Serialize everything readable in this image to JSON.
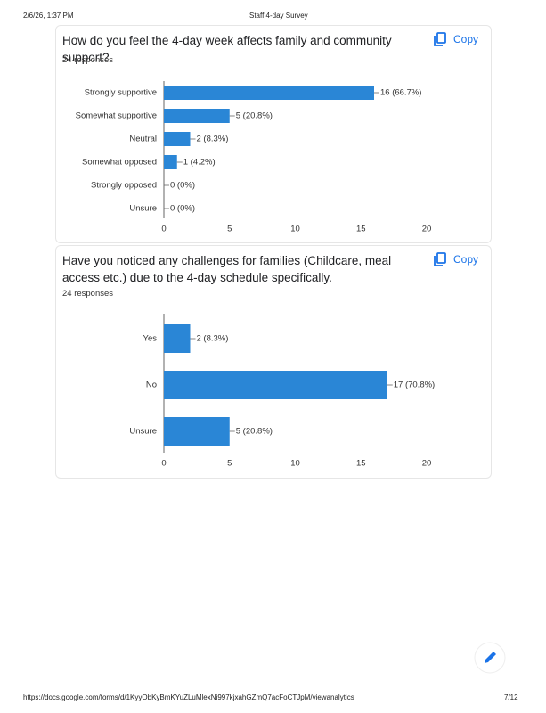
{
  "header": {
    "datetime": "2/6/26, 1:37 PM",
    "title": "Staff 4-day Survey"
  },
  "chart_data": [
    {
      "type": "bar",
      "orientation": "horizontal",
      "title": "How do you feel the 4-day week affects family and community support?",
      "subtitle": "24 responses",
      "copy_button": "Copy",
      "categories": [
        "Strongly supportive",
        "Somewhat supportive",
        "Neutral",
        "Somewhat opposed",
        "Strongly opposed",
        "Unsure"
      ],
      "values": [
        16,
        5,
        2,
        1,
        0,
        0
      ],
      "value_labels": [
        "16 (66.7%)",
        "5 (20.8%)",
        "2 (8.3%)",
        "1 (4.2%)",
        "0 (0%)",
        "0 (0%)"
      ],
      "color": "#2a86d6",
      "xlim": [
        0,
        20
      ],
      "xticks": [
        0,
        5,
        10,
        15,
        20
      ]
    },
    {
      "type": "bar",
      "orientation": "horizontal",
      "title": "Have you noticed any challenges for families (Childcare, meal access etc.) due to the 4-day schedule specifically.",
      "subtitle": "24 responses",
      "copy_button": "Copy",
      "categories": [
        "Yes",
        "No",
        "Unsure"
      ],
      "values": [
        2,
        17,
        5
      ],
      "value_labels": [
        "2 (8.3%)",
        "17 (70.8%)",
        "5 (20.8%)"
      ],
      "color": "#2a86d6",
      "xlim": [
        0,
        20
      ],
      "xticks": [
        0,
        5,
        10,
        15,
        20
      ]
    }
  ],
  "footer": {
    "url": "https://docs.google.com/forms/d/1KyyObKyBmKYuZLuMlexNi997kjxahGZmQ7acFoCTJpM/viewanalytics",
    "page": "7/12"
  }
}
